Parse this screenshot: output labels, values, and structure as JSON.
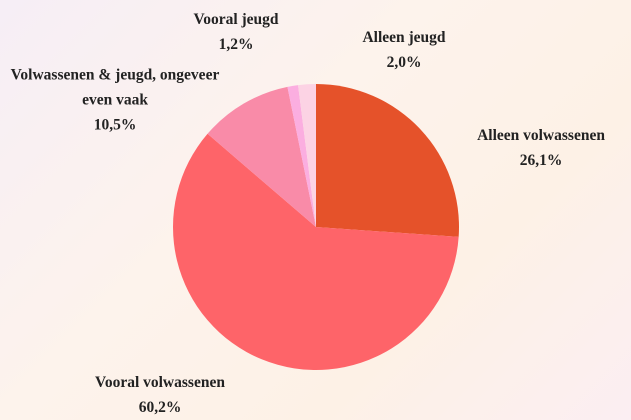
{
  "chart_data": {
    "type": "pie",
    "categories": [
      "Alleen volwassenen",
      "Vooral volwassenen",
      "Volwassenen & jeugd, ongeveer even vaak",
      "Vooral jeugd",
      "Alleen jeugd"
    ],
    "values": [
      26.1,
      60.2,
      10.5,
      1.2,
      2.0
    ],
    "value_labels": [
      "26,1%",
      "60,2%",
      "10,5%",
      "1,2%",
      "2,0%"
    ],
    "colors": [
      "#e5522a",
      "#fe6469",
      "#f98ba8",
      "#fbaee0",
      "#fcd3e4"
    ]
  }
}
